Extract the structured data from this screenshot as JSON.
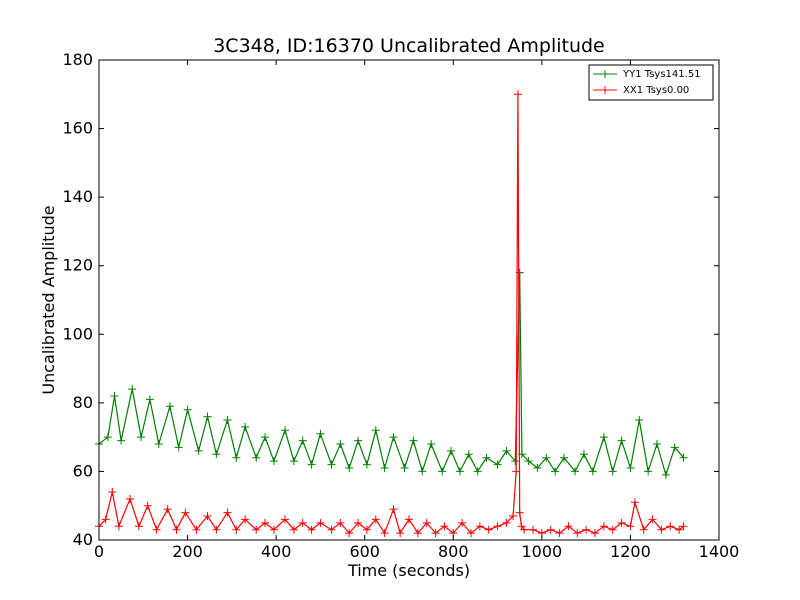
{
  "chart_data": {
    "type": "line",
    "title": "3C348, ID:16370 Uncalibrated Amplitude",
    "xlabel": "Time (seconds)",
    "ylabel": "Uncalibrated Amplitude",
    "xlim": [
      0,
      1400
    ],
    "ylim": [
      40,
      180
    ],
    "xticks": [
      0,
      200,
      400,
      600,
      800,
      1000,
      1200,
      1400
    ],
    "yticks": [
      40,
      60,
      80,
      100,
      120,
      140,
      160,
      180
    ],
    "xtick_labels": [
      "0",
      "200",
      "400",
      "600",
      "800",
      "1000",
      "1200",
      "1400"
    ],
    "ytick_labels": [
      "40",
      "60",
      "80",
      "100",
      "120",
      "140",
      "160",
      "180"
    ],
    "grid": false,
    "legend_position": "top-right",
    "marker": "+",
    "series": [
      {
        "name": "YY1 Tsys141.51",
        "color": "#008000",
        "x": [
          0,
          20,
          35,
          50,
          75,
          95,
          115,
          135,
          160,
          180,
          200,
          225,
          245,
          265,
          290,
          310,
          330,
          355,
          375,
          395,
          420,
          440,
          460,
          480,
          500,
          525,
          545,
          565,
          585,
          605,
          625,
          645,
          665,
          690,
          710,
          730,
          750,
          775,
          795,
          815,
          835,
          855,
          875,
          900,
          920,
          940,
          950,
          955,
          970,
          990,
          1010,
          1030,
          1050,
          1075,
          1095,
          1115,
          1140,
          1160,
          1180,
          1200,
          1220,
          1240,
          1260,
          1280,
          1300,
          1320
        ],
        "y": [
          68,
          70,
          82,
          69,
          84,
          70,
          81,
          68,
          79,
          67,
          78,
          66,
          76,
          65,
          75,
          64,
          73,
          64,
          70,
          63,
          72,
          63,
          69,
          62,
          71,
          62,
          68,
          61,
          69,
          62,
          72,
          61,
          70,
          61,
          69,
          60,
          68,
          60,
          66,
          60,
          65,
          60,
          64,
          62,
          66,
          63,
          118,
          65,
          63,
          61,
          64,
          60,
          64,
          60,
          65,
          60,
          70,
          60,
          69,
          61,
          75,
          60,
          68,
          59,
          67,
          64
        ]
      },
      {
        "name": "XX1 Tsys0.00",
        "color": "#ff0000",
        "x": [
          0,
          15,
          30,
          45,
          70,
          90,
          110,
          130,
          155,
          175,
          195,
          220,
          245,
          265,
          290,
          310,
          330,
          355,
          375,
          395,
          420,
          440,
          460,
          480,
          500,
          525,
          545,
          565,
          585,
          605,
          625,
          645,
          665,
          680,
          700,
          720,
          740,
          760,
          780,
          800,
          820,
          840,
          860,
          880,
          900,
          920,
          935,
          942,
          946,
          950,
          954,
          960,
          980,
          1000,
          1020,
          1040,
          1060,
          1080,
          1100,
          1120,
          1140,
          1160,
          1180,
          1200,
          1210,
          1230,
          1250,
          1270,
          1290,
          1310,
          1320
        ],
        "y": [
          44,
          46,
          54,
          44,
          52,
          44,
          50,
          43,
          49,
          43,
          48,
          43,
          47,
          43,
          48,
          43,
          46,
          43,
          45,
          43,
          46,
          43,
          45,
          43,
          45,
          43,
          45,
          42,
          45,
          43,
          46,
          42,
          49,
          42,
          46,
          42,
          45,
          42,
          44,
          42,
          45,
          42,
          44,
          43,
          44,
          45,
          47,
          60,
          170,
          48,
          44,
          43,
          43,
          42,
          43,
          42,
          44,
          42,
          43,
          42,
          44,
          43,
          45,
          44,
          51,
          43,
          46,
          43,
          44,
          43,
          44
        ]
      }
    ]
  }
}
